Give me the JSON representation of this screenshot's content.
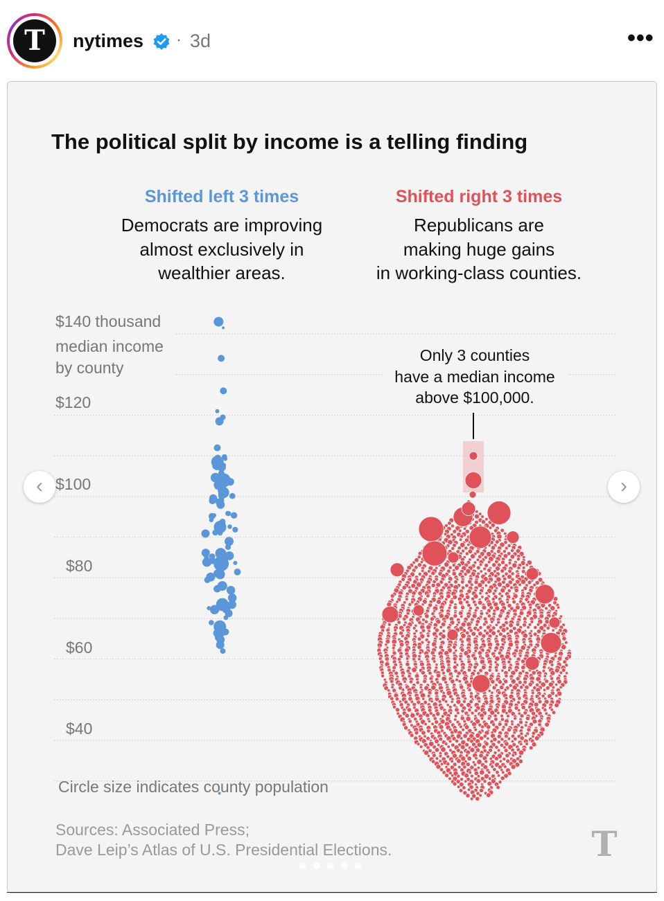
{
  "post": {
    "username": "nytimes",
    "separator": "·",
    "age": "3d",
    "avatar_glyph": "T",
    "more_icon": "•••"
  },
  "carousel": {
    "prev_glyph": "‹",
    "next_glyph": "›",
    "slide_count": 5,
    "active_index": 1
  },
  "colors": {
    "democrat": "#5b97d8",
    "republican": "#e0525a",
    "card_bg": "#f4f4f4",
    "verified": "#1d9bf0"
  },
  "chart_data": {
    "type": "scatter",
    "subtype": "beeswarm",
    "title": "The political split by income is a telling finding",
    "series": [
      {
        "name": "Shifted left 3 times",
        "color": "#5b97d8",
        "description_lines": [
          "Democrats are improving",
          "almost exclusively in",
          "wealthier areas."
        ],
        "median_income_range_thousands": [
          27,
          143
        ],
        "approx_county_count": 90
      },
      {
        "name": "Shifted right 3 times",
        "color": "#e0525a",
        "description_lines": [
          "Republicans are",
          "making huge gains",
          "in working-class counties."
        ],
        "median_income_range_thousands": [
          25,
          110
        ],
        "approx_county_count": 1300,
        "counties_above_100k": 3
      }
    ],
    "y_axis": {
      "label_lines": [
        "$140 thousand",
        "median income",
        "by county"
      ],
      "tick_labels": [
        "$120",
        "$100",
        "$80",
        "$60",
        "$40"
      ],
      "ticks": [
        140,
        120,
        100,
        80,
        60,
        40
      ],
      "range": [
        27,
        145
      ],
      "gridlines_every": 10
    },
    "annotation": {
      "lines": [
        "Only 3 counties",
        "have a median income",
        "above $100,000."
      ],
      "applies_to": "Shifted right 3 times",
      "threshold_thousands": 100
    },
    "size_note": "Circle size indicates county population",
    "source_lines": [
      "Sources: Associated Press;",
      "Dave Leip’s Atlas of U.S. Presidential Elections."
    ],
    "logo_glyph": "T"
  }
}
